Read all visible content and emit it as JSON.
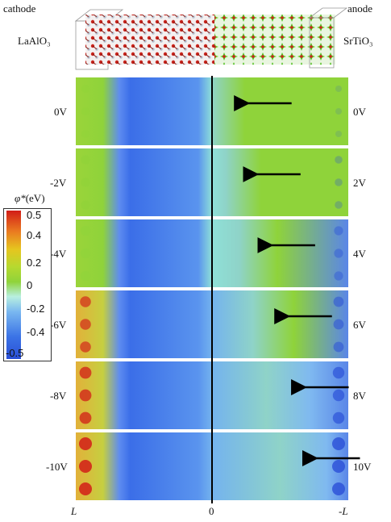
{
  "crystal": {
    "cathode_label": "cathode",
    "anode_label": "anode",
    "left_material": "LaAlO₃",
    "right_material": "SrTiO₃"
  },
  "colorbar": {
    "title_symbol": "φ*",
    "title_unit": "(eV)",
    "ticks": [
      "0.5",
      "0.4",
      "0.2",
      "0",
      "-0.2",
      "-0.4",
      "-0.5"
    ],
    "colors": {
      "max": "#d21d17",
      "mid": "#8fd33a",
      "min": "#2a4fd7"
    }
  },
  "panels": [
    {
      "left_label": "0V",
      "right_label": "0V",
      "arrow_tip": 0.12
    },
    {
      "left_label": "-2V",
      "right_label": "2V",
      "arrow_tip": 0.2
    },
    {
      "left_label": "-4V",
      "right_label": "4V",
      "arrow_tip": 0.33
    },
    {
      "left_label": "-6V",
      "right_label": "6V",
      "arrow_tip": 0.48
    },
    {
      "left_label": "-8V",
      "right_label": "8V",
      "arrow_tip": 0.63
    },
    {
      "left_label": "-10V",
      "right_label": "10V",
      "arrow_tip": 0.73
    }
  ],
  "axis": {
    "left_tick": "L",
    "center_tick": "0",
    "right_tick": "-L"
  }
}
